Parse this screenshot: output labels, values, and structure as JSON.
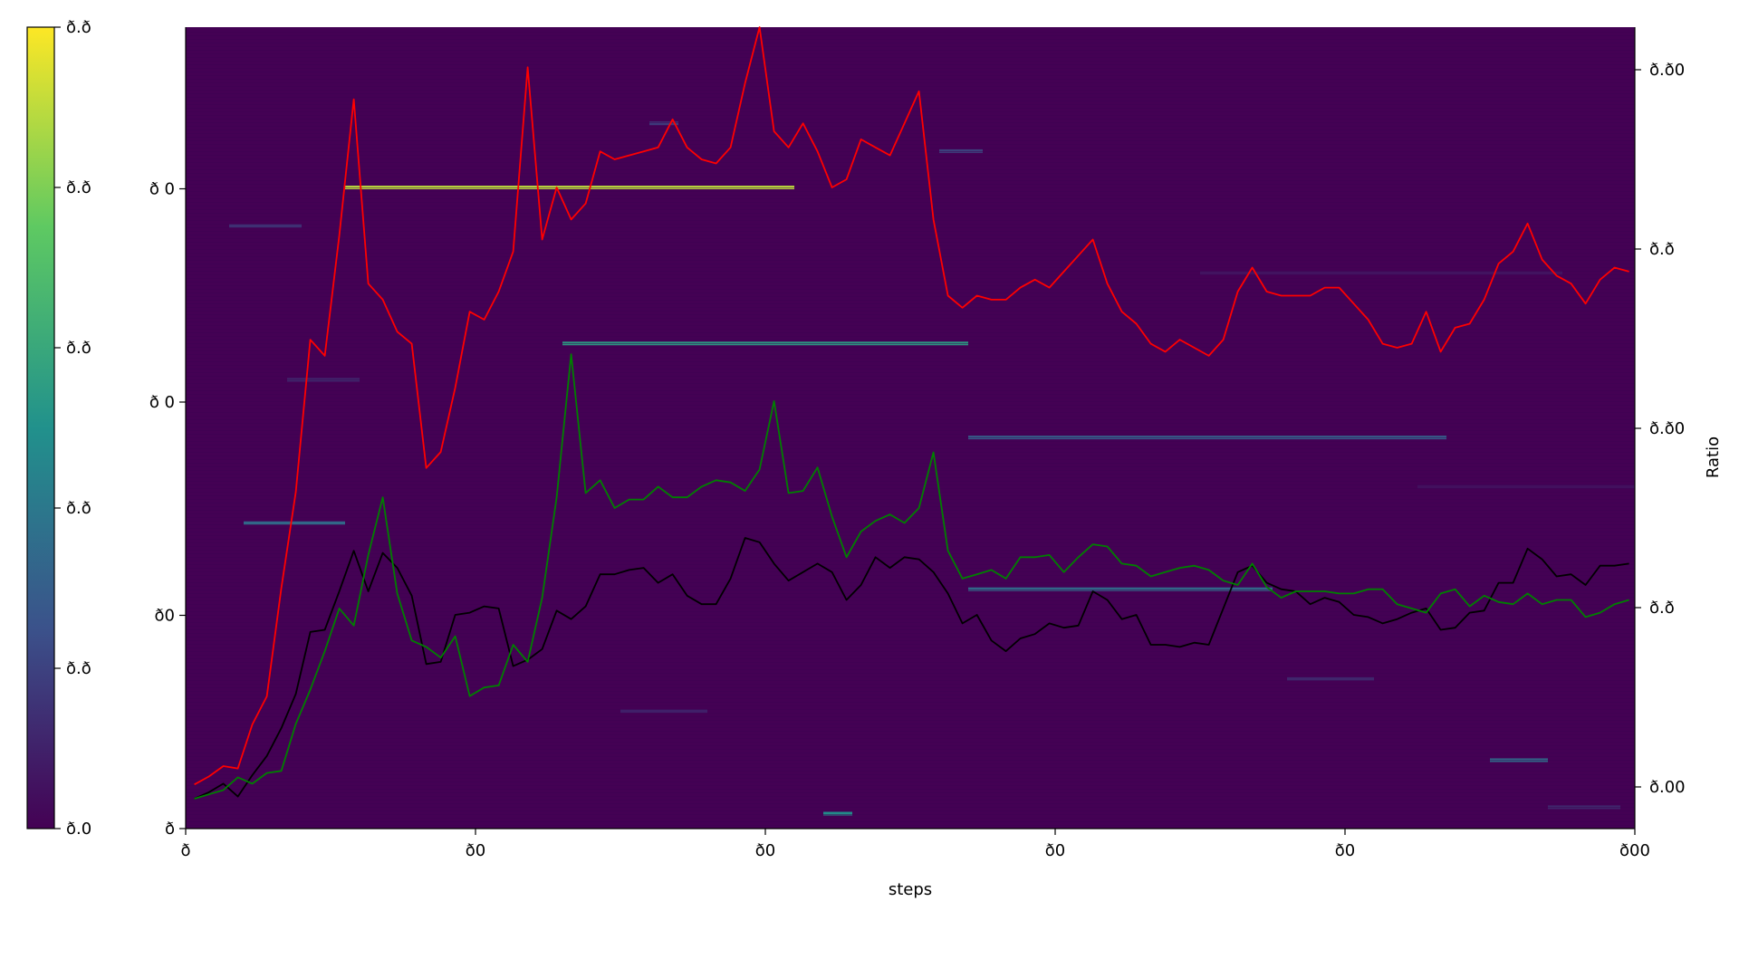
{
  "chart_data": {
    "type": "heatmap",
    "xlabel": "steps",
    "ylabel_right": "Ratio",
    "x_ticks": [
      "ð",
      "ð0",
      "ð0",
      "ð0",
      "ð0",
      "ð00"
    ],
    "y_left_ticks": [
      "ð",
      "ð0",
      "ð 0",
      "ð 0"
    ],
    "y_right_ticks": [
      "ð.00",
      "ð.ð",
      "ð.ð0",
      "ð.ð",
      "ð.ð0"
    ],
    "colorbar_ticks": [
      "ð.0",
      "ð.ð",
      "ð.ð",
      "ð.ð",
      "ð.ð",
      "ð.ð"
    ],
    "colormap": "viridis",
    "colormap_stops": [
      "#440154",
      "#3b528b",
      "#21918c",
      "#5ec962",
      "#fde725"
    ],
    "background_color": "#440154",
    "x_range": [
      0,
      100
    ],
    "y_left_range": [
      0,
      3.75
    ],
    "y_right_range": [
      0,
      1
    ],
    "heat_streaks": [
      {
        "row": 3.0,
        "x_from": 11,
        "x_to": 42,
        "intensity": 0.9
      },
      {
        "row": 2.27,
        "x_from": 26,
        "x_to": 54,
        "intensity": 0.55
      },
      {
        "row": 1.12,
        "x_from": 54,
        "x_to": 75,
        "intensity": 0.35
      },
      {
        "row": 1.83,
        "x_from": 54,
        "x_to": 87,
        "intensity": 0.3
      },
      {
        "row": 1.43,
        "x_from": 4,
        "x_to": 11,
        "intensity": 0.35
      },
      {
        "row": 0.07,
        "x_from": 44,
        "x_to": 46,
        "intensity": 0.5
      },
      {
        "row": 0.32,
        "x_from": 90,
        "x_to": 94,
        "intensity": 0.35
      },
      {
        "row": 2.82,
        "x_from": 3,
        "x_to": 8,
        "intensity": 0.15
      },
      {
        "row": 2.1,
        "x_from": 7,
        "x_to": 12,
        "intensity": 0.12
      },
      {
        "row": 0.55,
        "x_from": 30,
        "x_to": 36,
        "intensity": 0.1
      },
      {
        "row": 3.17,
        "x_from": 52,
        "x_to": 55,
        "intensity": 0.2
      },
      {
        "row": 3.3,
        "x_from": 32,
        "x_to": 34,
        "intensity": 0.18
      },
      {
        "row": 2.6,
        "x_from": 70,
        "x_to": 95,
        "intensity": 0.06
      },
      {
        "row": 1.6,
        "x_from": 85,
        "x_to": 100,
        "intensity": 0.05
      },
      {
        "row": 0.7,
        "x_from": 76,
        "x_to": 82,
        "intensity": 0.12
      },
      {
        "row": 0.1,
        "x_from": 94,
        "x_to": 99,
        "intensity": 0.12
      }
    ],
    "series": [
      {
        "color": "#ff0000",
        "values": [
          0.055,
          0.065,
          0.078,
          0.075,
          0.13,
          0.165,
          0.3,
          0.42,
          0.61,
          0.59,
          0.74,
          0.91,
          0.68,
          0.66,
          0.62,
          0.605,
          0.45,
          0.47,
          0.55,
          0.645,
          0.635,
          0.67,
          0.72,
          0.95,
          0.735,
          0.8,
          0.76,
          0.78,
          0.845,
          0.835,
          0.84,
          0.845,
          0.85,
          0.885,
          0.85,
          0.835,
          0.83,
          0.85,
          0.93,
          1.0,
          0.87,
          0.85,
          0.88,
          0.845,
          0.8,
          0.81,
          0.86,
          0.85,
          0.84,
          0.88,
          0.92,
          0.76,
          0.665,
          0.65,
          0.665,
          0.66,
          0.66,
          0.675,
          0.685,
          0.675,
          0.695,
          0.715,
          0.735,
          0.68,
          0.645,
          0.63,
          0.605,
          0.595,
          0.61,
          0.6,
          0.59,
          0.61,
          0.67,
          0.7,
          0.67,
          0.665,
          0.665,
          0.665,
          0.675,
          0.675,
          0.655,
          0.635,
          0.605,
          0.6,
          0.605,
          0.645,
          0.595,
          0.625,
          0.63,
          0.66,
          0.705,
          0.72,
          0.755,
          0.71,
          0.69,
          0.68,
          0.655,
          0.685,
          0.7,
          0.695
        ],
        "secondary_axis": true
      },
      {
        "color": "#000000",
        "values": [
          0.14,
          0.17,
          0.21,
          0.15,
          0.25,
          0.34,
          0.47,
          0.63,
          0.92,
          0.93,
          1.11,
          1.3,
          1.11,
          1.29,
          1.22,
          1.09,
          0.77,
          0.78,
          1.0,
          1.01,
          1.04,
          1.03,
          0.76,
          0.79,
          0.84,
          1.02,
          0.98,
          1.04,
          1.19,
          1.19,
          1.21,
          1.22,
          1.15,
          1.19,
          1.09,
          1.05,
          1.05,
          1.17,
          1.36,
          1.34,
          1.24,
          1.16,
          1.2,
          1.24,
          1.2,
          1.07,
          1.14,
          1.27,
          1.22,
          1.27,
          1.26,
          1.2,
          1.1,
          0.96,
          1.0,
          0.88,
          0.83,
          0.89,
          0.91,
          0.96,
          0.94,
          0.95,
          1.11,
          1.07,
          0.98,
          1.0,
          0.86,
          0.86,
          0.85,
          0.87,
          0.86,
          1.03,
          1.2,
          1.23,
          1.15,
          1.12,
          1.11,
          1.05,
          1.08,
          1.06,
          1.0,
          0.99,
          0.96,
          0.98,
          1.01,
          1.03,
          0.93,
          0.94,
          1.01,
          1.02,
          1.15,
          1.15,
          1.31,
          1.26,
          1.18,
          1.19,
          1.14,
          1.23,
          1.23,
          1.24
        ],
        "secondary_axis": false
      },
      {
        "color": "#008000",
        "values": [
          0.14,
          0.16,
          0.18,
          0.24,
          0.21,
          0.26,
          0.27,
          0.49,
          0.65,
          0.83,
          1.03,
          0.95,
          1.28,
          1.55,
          1.1,
          0.88,
          0.85,
          0.8,
          0.9,
          0.62,
          0.66,
          0.67,
          0.86,
          0.78,
          1.08,
          1.55,
          2.22,
          1.57,
          1.63,
          1.5,
          1.54,
          1.54,
          1.6,
          1.55,
          1.55,
          1.6,
          1.63,
          1.62,
          1.58,
          1.68,
          2.0,
          1.57,
          1.58,
          1.69,
          1.46,
          1.27,
          1.39,
          1.44,
          1.47,
          1.43,
          1.5,
          1.76,
          1.3,
          1.17,
          1.19,
          1.21,
          1.17,
          1.27,
          1.27,
          1.28,
          1.2,
          1.27,
          1.33,
          1.32,
          1.24,
          1.23,
          1.18,
          1.2,
          1.22,
          1.23,
          1.21,
          1.16,
          1.14,
          1.24,
          1.13,
          1.08,
          1.11,
          1.11,
          1.11,
          1.1,
          1.1,
          1.12,
          1.12,
          1.05,
          1.03,
          1.01,
          1.1,
          1.12,
          1.04,
          1.09,
          1.06,
          1.05,
          1.1,
          1.05,
          1.07,
          1.07,
          0.99,
          1.01,
          1.05,
          1.07
        ],
        "secondary_axis": false
      }
    ]
  }
}
